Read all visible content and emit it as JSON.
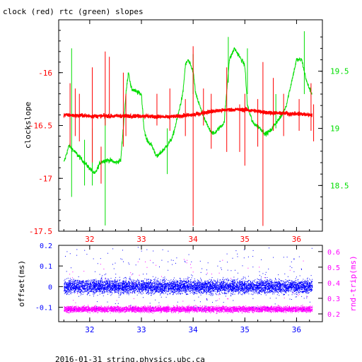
{
  "title": "clock (red) rtc (green) slopes",
  "footer": "2016-01-31 string.physics.ubc.ca",
  "colors": {
    "clock": "#ff0000",
    "rtc": "#00dd00",
    "offset": "#0000ff",
    "rnd_trip": "#ff00ff",
    "frame": "#000000"
  },
  "chart_data": [
    {
      "type": "line",
      "title": "clock (red) rtc (green) slopes",
      "ylabel": "clockslope",
      "y2label": "",
      "xlim": [
        31.4,
        36.5
      ],
      "ylim": [
        -17.5,
        -15.5
      ],
      "y2lim": [
        18.1,
        19.95
      ],
      "x_ticks": [
        "32",
        "33",
        "34",
        "35",
        "36"
      ],
      "y_ticks": [
        "-16",
        "-16.5",
        "-17",
        "-17.5"
      ],
      "y2_ticks": [
        "19.5",
        "19",
        "18.5"
      ],
      "series": [
        {
          "name": "clock",
          "axis": "left",
          "base_level": -16.42,
          "points": [
            [
              31.5,
              -16.4
            ],
            [
              32.0,
              -16.41
            ],
            [
              32.5,
              -16.41
            ],
            [
              33.0,
              -16.41
            ],
            [
              33.5,
              -16.42
            ],
            [
              34.0,
              -16.4
            ],
            [
              34.3,
              -16.37
            ],
            [
              34.7,
              -16.35
            ],
            [
              35.0,
              -16.35
            ],
            [
              35.5,
              -16.38
            ],
            [
              36.0,
              -16.39
            ],
            [
              36.3,
              -16.4
            ]
          ],
          "spikes": [
            [
              31.62,
              -16.1,
              -16.7
            ],
            [
              31.72,
              -16.15,
              -16.6
            ],
            [
              31.8,
              -16.2,
              -16.65
            ],
            [
              32.05,
              -15.95,
              -16.85
            ],
            [
              32.22,
              -16.7,
              -17.05
            ],
            [
              32.3,
              -15.8,
              -16.5
            ],
            [
              32.38,
              -15.85,
              -16.4
            ],
            [
              32.65,
              -16.0,
              -16.7
            ],
            [
              32.7,
              -16.2,
              -16.6
            ],
            [
              33.3,
              -16.2,
              -16.5
            ],
            [
              33.55,
              -16.15,
              -16.55
            ],
            [
              33.85,
              -16.25,
              -16.6
            ],
            [
              34.0,
              -15.75,
              -17.45
            ],
            [
              34.2,
              -16.15,
              -16.5
            ],
            [
              34.35,
              -16.2,
              -16.72
            ],
            [
              34.65,
              -15.95,
              -16.75
            ],
            [
              34.9,
              -16.3,
              -16.75
            ],
            [
              35.0,
              -16.2,
              -16.88
            ],
            [
              35.25,
              -16.25,
              -16.7
            ],
            [
              35.35,
              -15.9,
              -17.45
            ],
            [
              35.55,
              -16.05,
              -16.55
            ],
            [
              35.75,
              -16.2,
              -16.6
            ],
            [
              36.05,
              -16.25,
              -16.55
            ],
            [
              36.28,
              -16.1,
              -16.55
            ],
            [
              36.33,
              -16.3,
              -16.65
            ]
          ]
        },
        {
          "name": "rtc",
          "axis": "right",
          "points": [
            [
              31.5,
              18.7
            ],
            [
              31.6,
              18.85
            ],
            [
              31.7,
              18.8
            ],
            [
              31.8,
              18.75
            ],
            [
              31.9,
              18.7
            ],
            [
              32.0,
              18.65
            ],
            [
              32.1,
              18.6
            ],
            [
              32.2,
              18.7
            ],
            [
              32.3,
              18.72
            ],
            [
              32.4,
              18.72
            ],
            [
              32.5,
              18.7
            ],
            [
              32.6,
              18.72
            ],
            [
              32.7,
              19.3
            ],
            [
              32.75,
              19.5
            ],
            [
              32.8,
              19.35
            ],
            [
              32.9,
              19.32
            ],
            [
              33.0,
              19.3
            ],
            [
              33.05,
              19.0
            ],
            [
              33.1,
              18.9
            ],
            [
              33.2,
              18.85
            ],
            [
              33.3,
              18.75
            ],
            [
              33.4,
              18.8
            ],
            [
              33.5,
              18.85
            ],
            [
              33.6,
              18.92
            ],
            [
              33.7,
              19.1
            ],
            [
              33.8,
              19.3
            ],
            [
              33.85,
              19.55
            ],
            [
              33.9,
              19.6
            ],
            [
              34.0,
              19.5
            ],
            [
              34.05,
              19.3
            ],
            [
              34.2,
              19.1
            ],
            [
              34.3,
              19.0
            ],
            [
              34.4,
              18.95
            ],
            [
              34.5,
              19.0
            ],
            [
              34.6,
              19.05
            ],
            [
              34.7,
              19.6
            ],
            [
              34.8,
              19.7
            ],
            [
              35.0,
              19.55
            ],
            [
              35.05,
              19.2
            ],
            [
              35.15,
              19.05
            ],
            [
              35.3,
              19.0
            ],
            [
              35.4,
              18.95
            ],
            [
              35.5,
              18.98
            ],
            [
              35.6,
              19.05
            ],
            [
              35.7,
              19.1
            ],
            [
              35.8,
              19.2
            ],
            [
              35.9,
              19.4
            ],
            [
              36.0,
              19.6
            ],
            [
              36.1,
              19.6
            ],
            [
              36.2,
              19.4
            ],
            [
              36.3,
              19.3
            ]
          ],
          "spikes": [
            [
              31.65,
              19.7,
              18.4
            ],
            [
              31.9,
              18.9,
              18.5
            ],
            [
              32.05,
              19.0,
              18.5
            ],
            [
              32.3,
              19.1,
              18.15
            ],
            [
              33.5,
              19.0,
              18.6
            ],
            [
              34.0,
              19.65,
              19.3
            ],
            [
              34.68,
              19.8,
              19.4
            ],
            [
              35.05,
              19.7,
              19.3
            ],
            [
              35.6,
              19.3,
              19.0
            ],
            [
              36.15,
              19.85,
              19.3
            ]
          ]
        }
      ]
    },
    {
      "type": "scatter",
      "xlabel": "",
      "ylabel": "offset(ms)",
      "y2label": "rnd-trip(ms)",
      "xlim": [
        31.4,
        36.5
      ],
      "ylim": [
        -0.17,
        0.2
      ],
      "y2lim": [
        0.15,
        0.64
      ],
      "x_ticks": [
        "32",
        "33",
        "34",
        "35",
        "36"
      ],
      "y_ticks": [
        "0.2",
        "0.1",
        "0",
        "-0.1"
      ],
      "y2_ticks": [
        "0.6",
        "0.5",
        "0.4",
        "0.3",
        "0.2"
      ],
      "series": [
        {
          "name": "offset",
          "axis": "left",
          "center": 0.0,
          "spread": 0.035,
          "outlier_range": [
            -0.12,
            0.19
          ]
        },
        {
          "name": "rnd-trip",
          "axis": "right",
          "center": 0.23,
          "spread": 0.02,
          "outlier_range": [
            0.26,
            0.56
          ]
        }
      ],
      "x_range": [
        31.5,
        36.3
      ]
    }
  ]
}
